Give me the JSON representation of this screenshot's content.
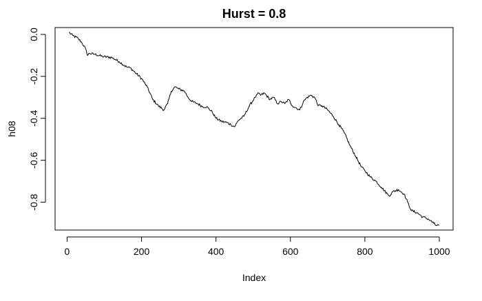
{
  "chart_data": {
    "type": "line",
    "title": "Hurst = 0.8",
    "xlabel": "Index",
    "ylabel": "h08",
    "xlim": [
      1,
      1000
    ],
    "ylim": [
      -0.9,
      0.0
    ],
    "x_ticks": [
      0,
      200,
      400,
      600,
      800,
      1000
    ],
    "x_tick_labels": [
      "0",
      "200",
      "400",
      "600",
      "800",
      "1000"
    ],
    "y_ticks": [
      0.0,
      -0.2,
      -0.4,
      -0.6,
      -0.8
    ],
    "y_tick_labels": [
      "0.0",
      "-0.2",
      "-0.4",
      "-0.6",
      "-0.8"
    ],
    "grid": false,
    "legend": "none",
    "line_color": "#000000",
    "series": [
      {
        "x": [
          5,
          15,
          30,
          40,
          50,
          55,
          60,
          75,
          95,
          120,
          140,
          160,
          170,
          185,
          200,
          215,
          230,
          245,
          260,
          270,
          280,
          290,
          300,
          315,
          325,
          335,
          350,
          365,
          375,
          390,
          400,
          415,
          430,
          440,
          450,
          460,
          475,
          490,
          505,
          515,
          520,
          530,
          545,
          555,
          565,
          575,
          585,
          595,
          605,
          615,
          625,
          635,
          645,
          655,
          665,
          675,
          685,
          700,
          715,
          730,
          745,
          760,
          775,
          790,
          800,
          815,
          830,
          845,
          860,
          865,
          875,
          890,
          905,
          915,
          925,
          940,
          955,
          970,
          985,
          990,
          1000
        ],
        "y": [
          0.01,
          -0.005,
          -0.02,
          -0.04,
          -0.07,
          -0.1,
          -0.09,
          -0.095,
          -0.105,
          -0.11,
          -0.13,
          -0.155,
          -0.16,
          -0.185,
          -0.21,
          -0.25,
          -0.31,
          -0.34,
          -0.36,
          -0.33,
          -0.27,
          -0.25,
          -0.26,
          -0.27,
          -0.3,
          -0.32,
          -0.33,
          -0.345,
          -0.345,
          -0.37,
          -0.4,
          -0.415,
          -0.42,
          -0.43,
          -0.44,
          -0.41,
          -0.39,
          -0.34,
          -0.3,
          -0.28,
          -0.29,
          -0.28,
          -0.31,
          -0.3,
          -0.33,
          -0.32,
          -0.33,
          -0.31,
          -0.34,
          -0.35,
          -0.36,
          -0.32,
          -0.3,
          -0.29,
          -0.3,
          -0.34,
          -0.34,
          -0.36,
          -0.39,
          -0.43,
          -0.47,
          -0.53,
          -0.58,
          -0.63,
          -0.65,
          -0.68,
          -0.7,
          -0.73,
          -0.76,
          -0.77,
          -0.75,
          -0.74,
          -0.76,
          -0.8,
          -0.84,
          -0.85,
          -0.87,
          -0.88,
          -0.9,
          -0.91,
          -0.91
        ]
      }
    ]
  }
}
